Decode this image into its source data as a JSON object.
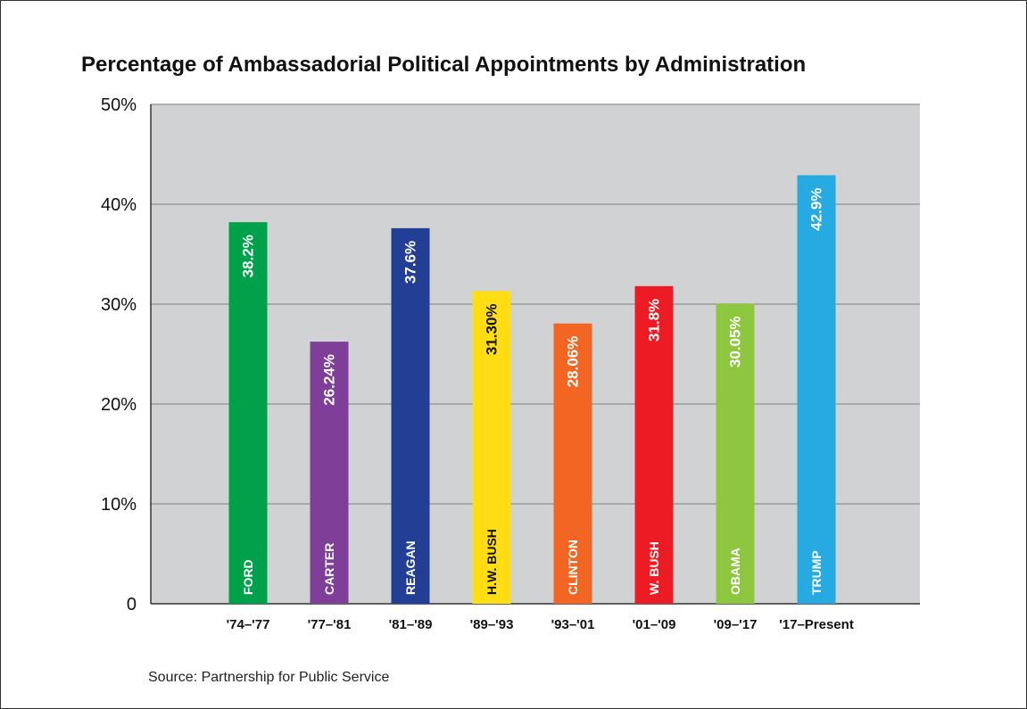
{
  "chart_data": {
    "type": "bar",
    "title": "Percentage of Ambassadorial Political Appointments by Administration",
    "categories": [
      "'74–'77",
      "'77–'81",
      "'81–'89",
      "'89–'93",
      "'93–'01",
      "'01–'09",
      "'09–'17",
      "'17–Present"
    ],
    "names": [
      "FORD",
      "CARTER",
      "REAGAN",
      "H.W. BUSH",
      "CLINTON",
      "W. BUSH",
      "OBAMA",
      "TRUMP"
    ],
    "values": [
      38.2,
      26.24,
      37.6,
      31.3,
      28.06,
      31.8,
      30.05,
      42.9
    ],
    "value_labels": [
      "38.2%",
      "26.24%",
      "37.6%",
      "31.30%",
      "28.06%",
      "31.8%",
      "30.05%",
      "42.9%"
    ],
    "colors": [
      "#00a14b",
      "#7f3f98",
      "#233f95",
      "#ffdd15",
      "#f26522",
      "#ed1c24",
      "#8dc63f",
      "#27aae1"
    ],
    "label_colors": [
      "#ffffff",
      "#ffffff",
      "#ffffff",
      "#111111",
      "#ffffff",
      "#ffffff",
      "#ffffff",
      "#ffffff"
    ],
    "ylim": [
      0,
      50
    ],
    "yticks": [
      0,
      10,
      20,
      30,
      40,
      50
    ],
    "ytick_labels": [
      "0",
      "10%",
      "20%",
      "30%",
      "40%",
      "50%"
    ],
    "xlabel": "",
    "ylabel": "",
    "grid": true,
    "plot_background": "#d1d2d4",
    "source": "Source: Partnership for Public Service"
  }
}
